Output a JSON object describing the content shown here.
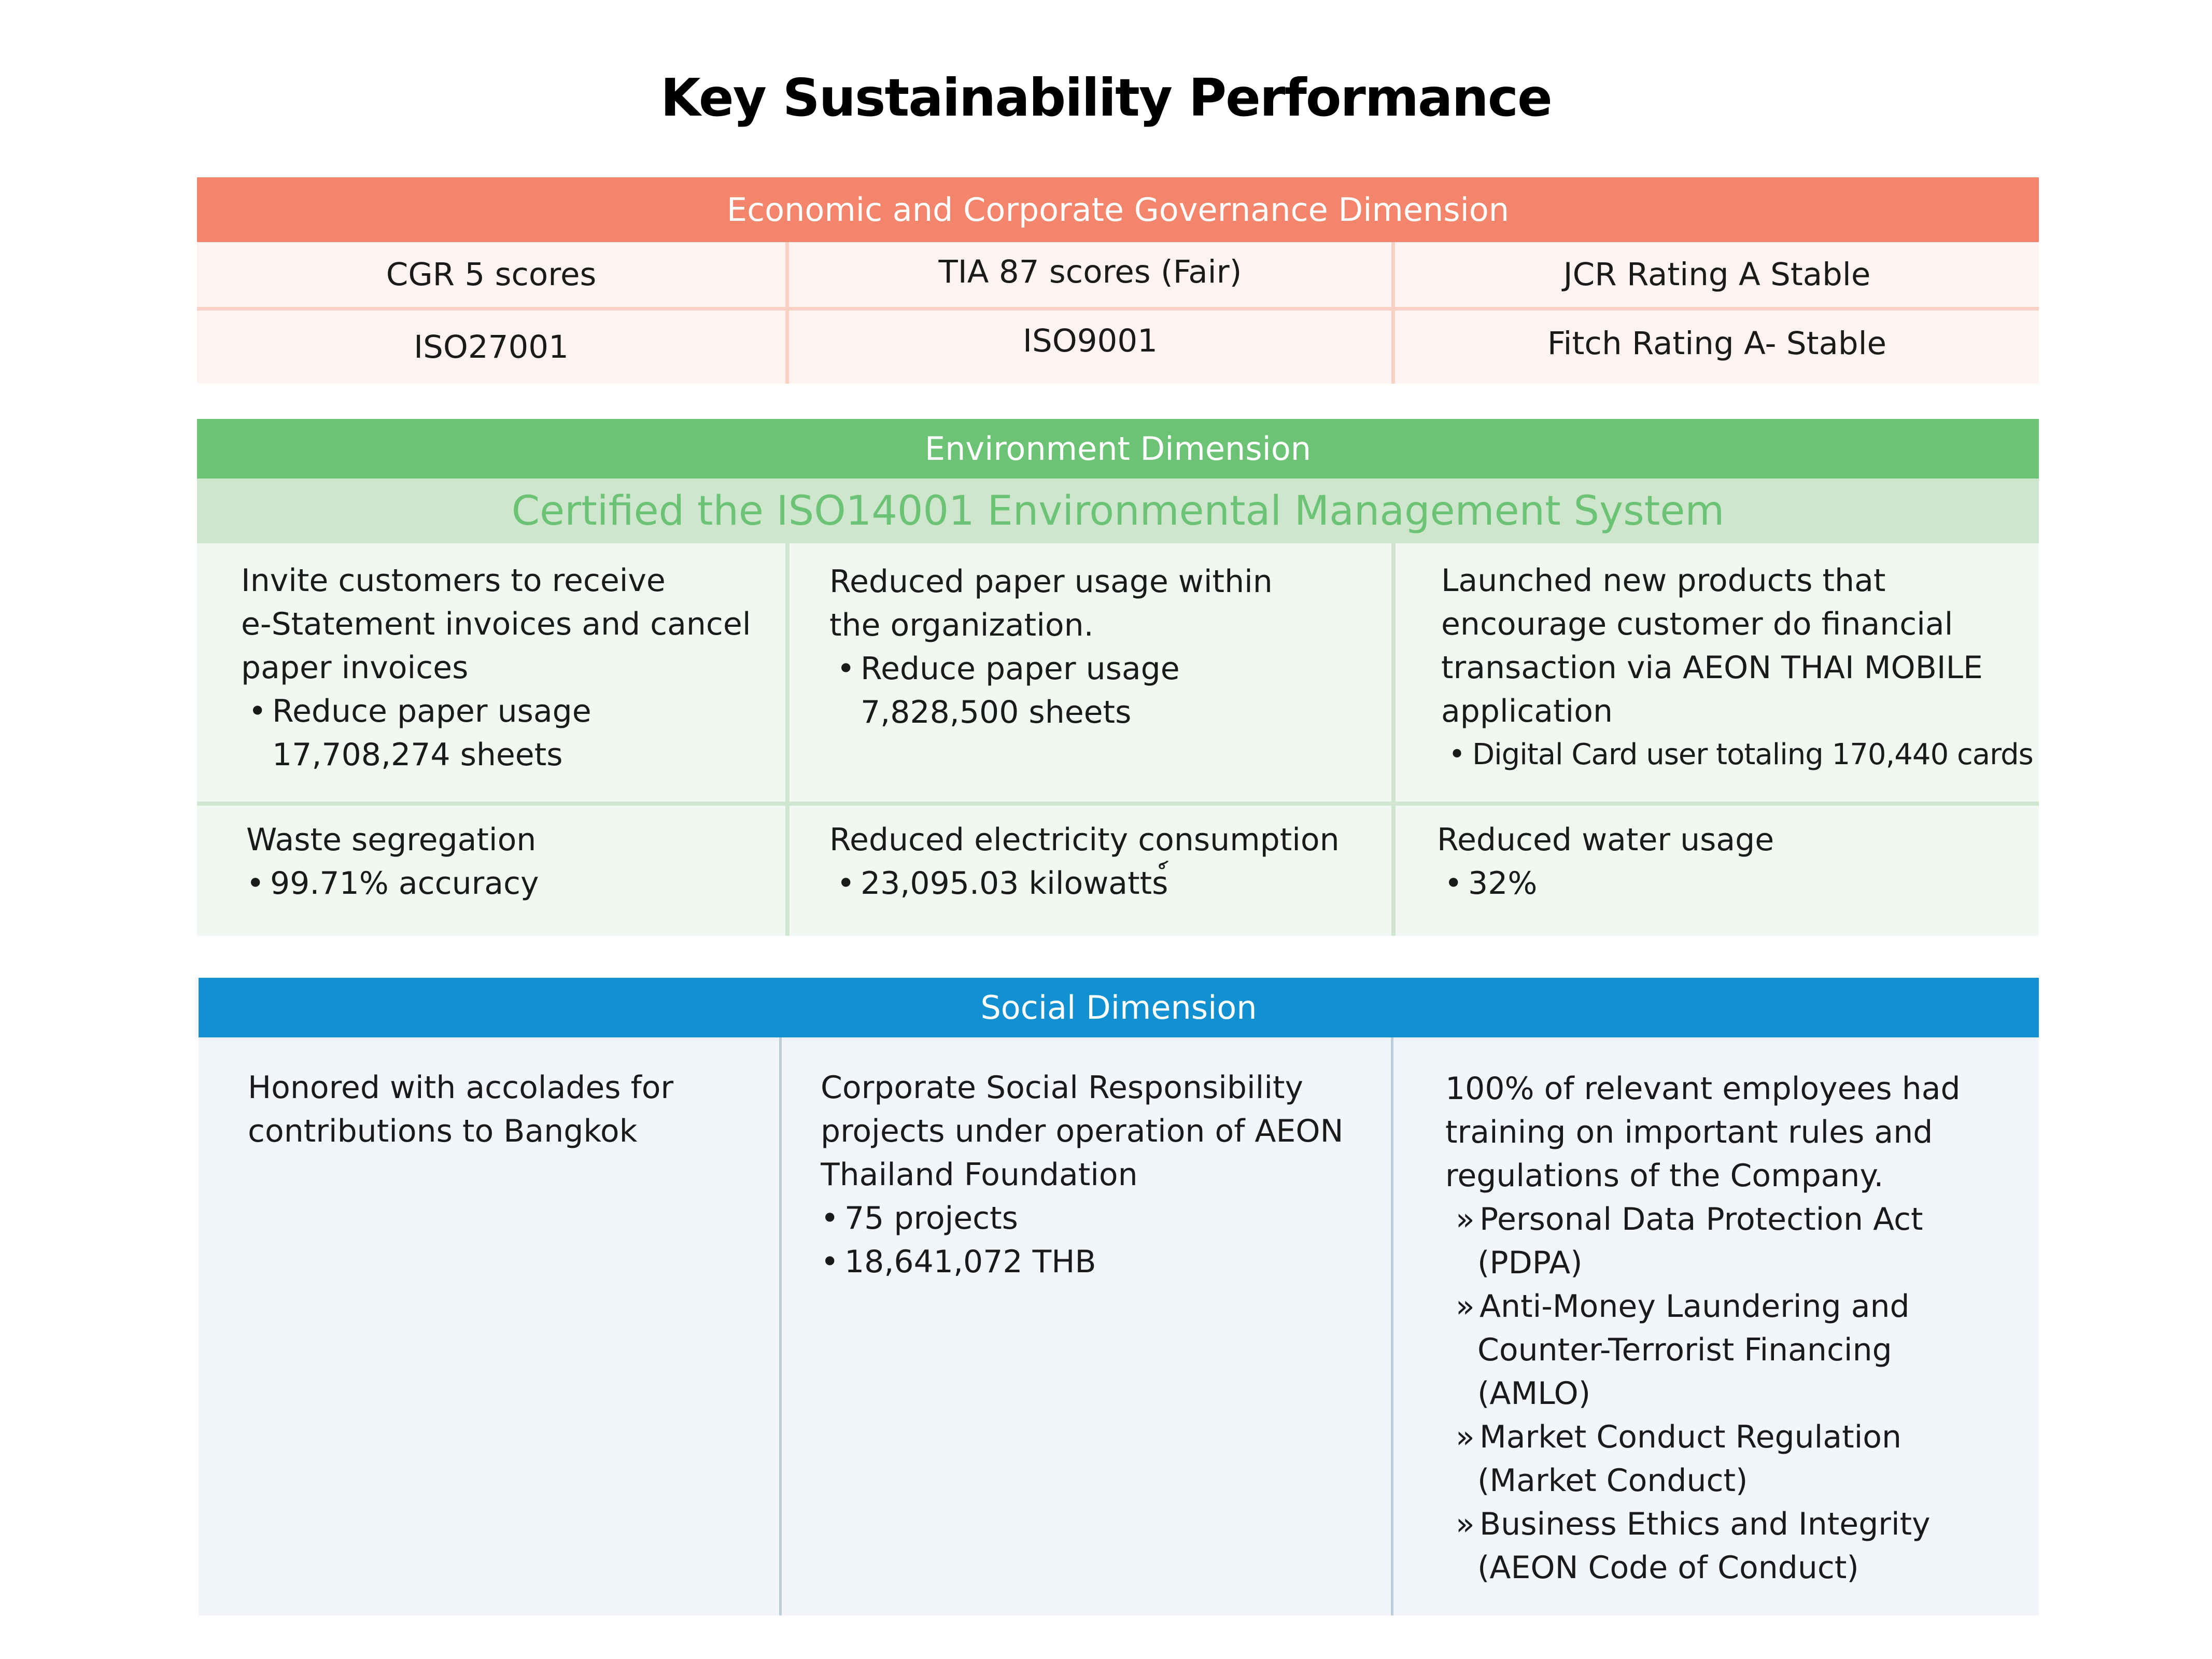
{
  "title": "Key Sustainability Performance",
  "economic": {
    "header": "Economic and Corporate Governance Dimension",
    "rows": [
      [
        "CGR 5 scores",
        "TIA 87 scores (Fair)",
        "JCR Rating A Stable"
      ],
      [
        "ISO27001",
        "ISO9001",
        "Fitch Rating A- Stable"
      ]
    ]
  },
  "environment": {
    "header": "Environment Dimension",
    "subheader": "Certified the ISO14001 Environmental Management System",
    "cells": {
      "c1": {
        "lines": [
          "Invite customers to receive",
          "e-Statement invoices and cancel",
          "paper invoices"
        ],
        "bullet": "Reduce paper usage",
        "bullet_cont": "17,708,274 sheets"
      },
      "c2": {
        "lines": [
          "Reduced paper usage within",
          "the organization."
        ],
        "bullet": "Reduce paper usage",
        "bullet_cont": "7,828,500 sheets"
      },
      "c3": {
        "lines": [
          "Launched new products that",
          "encourage customer do financial",
          "transaction via AEON THAI MOBILE",
          "application"
        ],
        "bullet": "Digital Card user totaling 170,440 cards"
      },
      "c4": {
        "line": "Waste segregation",
        "bullet": "99.71% accuracy"
      },
      "c5": {
        "line": "Reduced electricity consumption",
        "bullet": "23,095.03 kilowatts์"
      },
      "c6": {
        "line": "Reduced water usage",
        "bullet": "32%"
      }
    }
  },
  "social": {
    "header": "Social Dimension",
    "col1": {
      "lines": [
        "Honored with accolades for",
        "contributions to Bangkok"
      ]
    },
    "col2": {
      "lines": [
        "Corporate Social Responsibility",
        "projects under operation of AEON",
        "Thailand Foundation"
      ],
      "bullets": [
        "75 projects",
        "18,641,072 THB"
      ]
    },
    "col3": {
      "lines": [
        "100% of relevant employees had",
        "training on important rules and",
        "regulations of the Company."
      ],
      "items": [
        {
          "first": "Personal Data Protection Act",
          "rest": [
            "(PDPA)"
          ]
        },
        {
          "first": "Anti-Money Laundering and",
          "rest": [
            "Counter-Terrorist Financing",
            "(AMLO)"
          ]
        },
        {
          "first": "Market Conduct Regulation",
          "rest": [
            "(Market Conduct)"
          ]
        },
        {
          "first": "Business Ethics and Integrity",
          "rest": [
            "(AEON Code of Conduct)"
          ]
        }
      ]
    }
  },
  "symbols": {
    "bullet": "•",
    "raquo": "»"
  },
  "colors": {
    "economic_band": "#f4856d",
    "environment_band": "#6cc275",
    "environment_subband": "#cde6cc",
    "social_band": "#1291d2"
  }
}
